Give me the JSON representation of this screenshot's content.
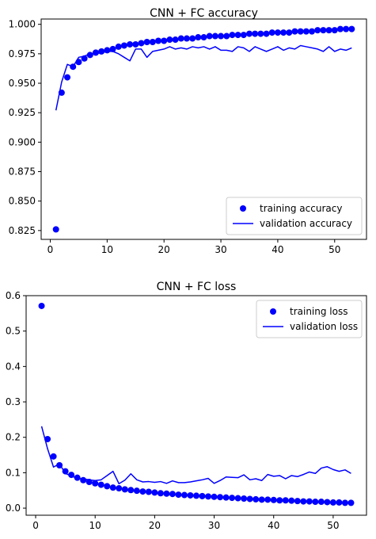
{
  "chart_data": [
    {
      "type": "line",
      "title": "CNN + FC accuracy",
      "xlabel": "",
      "ylabel": "",
      "xlim": [
        -1.6,
        55.6
      ],
      "ylim": [
        0.8175,
        1.0045
      ],
      "x_ticks": [
        0,
        10,
        20,
        30,
        40,
        50
      ],
      "y_ticks": [
        0.825,
        0.85,
        0.875,
        0.9,
        0.925,
        0.95,
        0.975,
        1.0
      ],
      "x_tick_labels": [
        "0",
        "10",
        "20",
        "30",
        "40",
        "50"
      ],
      "y_tick_labels": [
        "0.825",
        "0.850",
        "0.875",
        "0.900",
        "0.925",
        "0.950",
        "0.975",
        "1.000"
      ],
      "grid": false,
      "legend_placement": "lower-right",
      "colors": {
        "series": "#0000ff"
      },
      "x": [
        1,
        2,
        3,
        4,
        5,
        6,
        7,
        8,
        9,
        10,
        11,
        12,
        13,
        14,
        15,
        16,
        17,
        18,
        19,
        20,
        21,
        22,
        23,
        24,
        25,
        26,
        27,
        28,
        29,
        30,
        31,
        32,
        33,
        34,
        35,
        36,
        37,
        38,
        39,
        40,
        41,
        42,
        43,
        44,
        45,
        46,
        47,
        48,
        49,
        50,
        51,
        52,
        53
      ],
      "series": [
        {
          "name": "training accuracy",
          "style": "marker",
          "values": [
            0.826,
            0.942,
            0.955,
            0.964,
            0.968,
            0.971,
            0.974,
            0.976,
            0.977,
            0.978,
            0.979,
            0.981,
            0.982,
            0.983,
            0.983,
            0.984,
            0.985,
            0.985,
            0.986,
            0.986,
            0.987,
            0.987,
            0.988,
            0.988,
            0.988,
            0.989,
            0.989,
            0.99,
            0.99,
            0.99,
            0.99,
            0.991,
            0.991,
            0.991,
            0.992,
            0.992,
            0.992,
            0.992,
            0.993,
            0.993,
            0.993,
            0.993,
            0.994,
            0.994,
            0.994,
            0.994,
            0.995,
            0.995,
            0.995,
            0.995,
            0.996,
            0.996,
            0.996
          ]
        },
        {
          "name": "validation accuracy",
          "style": "line",
          "values": [
            0.927,
            0.951,
            0.966,
            0.964,
            0.972,
            0.973,
            0.975,
            0.975,
            0.976,
            0.977,
            0.977,
            0.975,
            0.972,
            0.969,
            0.979,
            0.979,
            0.972,
            0.977,
            0.978,
            0.979,
            0.981,
            0.979,
            0.98,
            0.979,
            0.981,
            0.98,
            0.981,
            0.979,
            0.981,
            0.978,
            0.978,
            0.977,
            0.981,
            0.98,
            0.977,
            0.981,
            0.979,
            0.977,
            0.979,
            0.981,
            0.978,
            0.98,
            0.979,
            0.982,
            0.981,
            0.98,
            0.979,
            0.977,
            0.981,
            0.977,
            0.979,
            0.978,
            0.98
          ]
        }
      ]
    },
    {
      "type": "line",
      "title": "CNN + FC loss",
      "xlabel": "",
      "ylabel": "",
      "xlim": [
        -1.6,
        55.6
      ],
      "ylim": [
        -0.02,
        0.6
      ],
      "x_ticks": [
        0,
        10,
        20,
        30,
        40,
        50
      ],
      "y_ticks": [
        0.0,
        0.1,
        0.2,
        0.3,
        0.4,
        0.5,
        0.6
      ],
      "x_tick_labels": [
        "0",
        "10",
        "20",
        "30",
        "40",
        "50"
      ],
      "y_tick_labels": [
        "0.0",
        "0.1",
        "0.2",
        "0.3",
        "0.4",
        "0.5",
        "0.6"
      ],
      "grid": false,
      "legend_placement": "upper-right",
      "colors": {
        "series": "#0000ff"
      },
      "x": [
        1,
        2,
        3,
        4,
        5,
        6,
        7,
        8,
        9,
        10,
        11,
        12,
        13,
        14,
        15,
        16,
        17,
        18,
        19,
        20,
        21,
        22,
        23,
        24,
        25,
        26,
        27,
        28,
        29,
        30,
        31,
        32,
        33,
        34,
        35,
        36,
        37,
        38,
        39,
        40,
        41,
        42,
        43,
        44,
        45,
        46,
        47,
        48,
        49,
        50,
        51,
        52,
        53
      ],
      "series": [
        {
          "name": "training loss",
          "style": "marker",
          "values": [
            0.571,
            0.195,
            0.146,
            0.121,
            0.104,
            0.094,
            0.086,
            0.079,
            0.074,
            0.07,
            0.066,
            0.062,
            0.058,
            0.056,
            0.053,
            0.051,
            0.049,
            0.047,
            0.046,
            0.044,
            0.042,
            0.041,
            0.04,
            0.038,
            0.037,
            0.036,
            0.035,
            0.034,
            0.033,
            0.032,
            0.031,
            0.03,
            0.029,
            0.028,
            0.027,
            0.026,
            0.025,
            0.024,
            0.024,
            0.023,
            0.022,
            0.022,
            0.021,
            0.02,
            0.019,
            0.019,
            0.018,
            0.018,
            0.017,
            0.016,
            0.016,
            0.015,
            0.015
          ]
        },
        {
          "name": "validation loss",
          "style": "line",
          "values": [
            0.231,
            0.168,
            0.116,
            0.125,
            0.098,
            0.091,
            0.084,
            0.083,
            0.08,
            0.078,
            0.08,
            0.092,
            0.104,
            0.069,
            0.079,
            0.097,
            0.08,
            0.074,
            0.075,
            0.073,
            0.075,
            0.07,
            0.077,
            0.072,
            0.072,
            0.074,
            0.077,
            0.08,
            0.084,
            0.07,
            0.078,
            0.088,
            0.087,
            0.086,
            0.094,
            0.08,
            0.083,
            0.078,
            0.095,
            0.09,
            0.092,
            0.083,
            0.092,
            0.089,
            0.095,
            0.102,
            0.098,
            0.113,
            0.117,
            0.109,
            0.104,
            0.108,
            0.098
          ]
        }
      ]
    }
  ]
}
